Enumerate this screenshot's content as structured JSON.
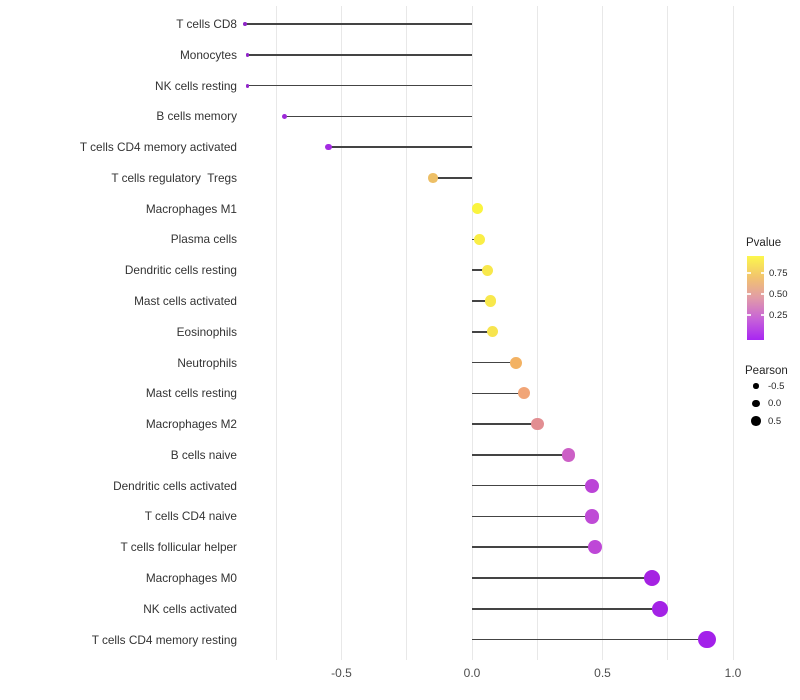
{
  "chart_data": {
    "type": "lollipop",
    "title": "",
    "xlabel": "",
    "ylabel": "",
    "xlim": [
      -0.89,
      1.24
    ],
    "grid": "vertical-only",
    "x_axis": {
      "ticks": [
        {
          "label": "-0.5",
          "value": -0.5
        },
        {
          "label": "0.0",
          "value": 0.0
        },
        {
          "label": "0.5",
          "value": 0.5
        },
        {
          "label": "1.0",
          "value": 1.0
        }
      ]
    },
    "gridline_values": [
      -0.75,
      -0.5,
      -0.25,
      0.0,
      0.25,
      0.5,
      0.75,
      1.0
    ],
    "points": [
      {
        "label": "T cells CD8",
        "pearson": -0.87,
        "color": "#8E26C6"
      },
      {
        "label": "Monocytes",
        "pearson": -0.86,
        "color": "#9126CA"
      },
      {
        "label": "NK cells resting",
        "pearson": -0.86,
        "color": "#9126CA"
      },
      {
        "label": "B cells memory",
        "pearson": -0.72,
        "color": "#9D29D8"
      },
      {
        "label": "T cells CD4 memory activated",
        "pearson": -0.55,
        "color": "#A42BE2"
      },
      {
        "label": "T cells regulatory  Tregs",
        "pearson": -0.15,
        "color": "#EDBF66"
      },
      {
        "label": "Macrophages M1",
        "pearson": 0.02,
        "color": "#FAF43F"
      },
      {
        "label": "Plasma cells",
        "pearson": 0.03,
        "color": "#FAEE46"
      },
      {
        "label": "Dendritic cells resting",
        "pearson": 0.06,
        "color": "#F8E84C"
      },
      {
        "label": "Mast cells activated",
        "pearson": 0.07,
        "color": "#F8E84C"
      },
      {
        "label": "Eosinophils",
        "pearson": 0.08,
        "color": "#F7E44E"
      },
      {
        "label": "Neutrophils",
        "pearson": 0.17,
        "color": "#F3B263"
      },
      {
        "label": "Mast cells resting",
        "pearson": 0.2,
        "color": "#F1A577"
      },
      {
        "label": "Macrophages M2",
        "pearson": 0.25,
        "color": "#E28E92"
      },
      {
        "label": "B cells naive",
        "pearson": 0.37,
        "color": "#CC60C6"
      },
      {
        "label": "Dendritic cells activated",
        "pearson": 0.46,
        "color": "#BB43D7"
      },
      {
        "label": "T cells CD4 naive",
        "pearson": 0.46,
        "color": "#BF4BD6"
      },
      {
        "label": "T cells follicular helper",
        "pearson": 0.47,
        "color": "#BE47D7"
      },
      {
        "label": "Macrophages M0",
        "pearson": 0.69,
        "color": "#A522E2"
      },
      {
        "label": "NK cells activated",
        "pearson": 0.72,
        "color": "#A423E6"
      },
      {
        "label": "T cells CD4 memory resting",
        "pearson": 0.9,
        "color": "#A321EA"
      }
    ],
    "legend": {
      "pvalue": {
        "title": "Pvalue",
        "tick_labels": [
          "0.75",
          "0.50",
          "0.25"
        ],
        "gradient_top_to_bottom": [
          "#FCF74C",
          "#F2C46E",
          "#E19BA8",
          "#C763D8",
          "#A826F2"
        ]
      },
      "pearson": {
        "title": "Pearson",
        "items": [
          {
            "label": "-0.5",
            "value": -0.5
          },
          {
            "label": "0.0",
            "value": 0.0
          },
          {
            "label": "0.5",
            "value": 0.5
          }
        ],
        "dot_color": "#000000"
      }
    },
    "colors": {
      "background": "#FFFFFF",
      "stem": "#444444",
      "gridline": "#E8E8E8",
      "axis_text": "#4D4D4D",
      "label_text": "#333333"
    }
  }
}
